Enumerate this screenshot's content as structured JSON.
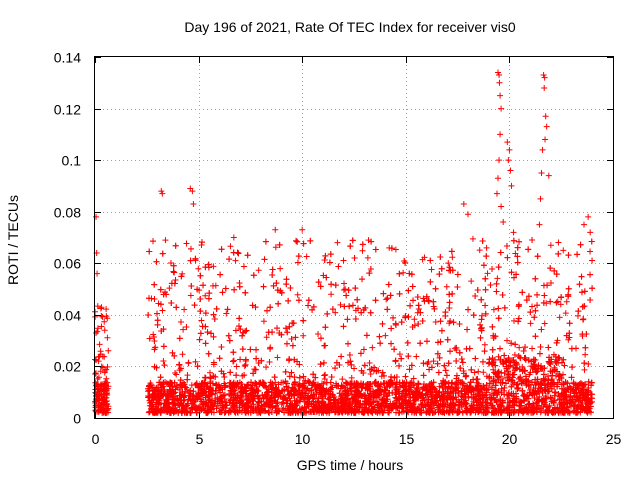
{
  "chart_data": {
    "type": "scatter",
    "title": "Day 196 of 2021, Rate Of TEC Index for receiver vis0",
    "xlabel": "GPS time / hours",
    "ylabel": "ROTI / TECUs",
    "xlim": [
      0,
      25
    ],
    "ylim": [
      0,
      0.14
    ],
    "xticks": [
      0,
      5,
      10,
      15,
      20,
      25
    ],
    "xtick_labels": [
      "0",
      "5",
      "10",
      "15",
      "20",
      "25"
    ],
    "yticks": [
      0,
      0.02,
      0.04,
      0.06,
      0.08,
      0.1,
      0.12,
      0.14
    ],
    "ytick_labels": [
      "0",
      "0.02",
      "0.04",
      "0.06",
      "0.08",
      "0.1",
      "0.12",
      "0.14"
    ],
    "grid": true,
    "marker": "+",
    "color": "#ff0000",
    "segments": [
      {
        "start": 0.0,
        "end": 0.65,
        "base": 0.012,
        "peak": 0.044
      },
      {
        "start": 2.55,
        "end": 24.0,
        "base": 0.012,
        "peak": 0.07
      }
    ],
    "points": [
      {
        "x": 0.05,
        "y": 0.078
      },
      {
        "x": 0.08,
        "y": 0.064
      },
      {
        "x": 0.1,
        "y": 0.056
      },
      {
        "x": 3.2,
        "y": 0.088
      },
      {
        "x": 3.25,
        "y": 0.087
      },
      {
        "x": 4.6,
        "y": 0.089
      },
      {
        "x": 4.7,
        "y": 0.088
      },
      {
        "x": 4.75,
        "y": 0.083
      },
      {
        "x": 3.4,
        "y": 0.069
      },
      {
        "x": 6.7,
        "y": 0.07
      },
      {
        "x": 8.7,
        "y": 0.073
      },
      {
        "x": 10.0,
        "y": 0.073
      },
      {
        "x": 11.7,
        "y": 0.068
      },
      {
        "x": 13.2,
        "y": 0.069
      },
      {
        "x": 14.2,
        "y": 0.066
      },
      {
        "x": 17.8,
        "y": 0.083
      },
      {
        "x": 18.0,
        "y": 0.079
      },
      {
        "x": 19.45,
        "y": 0.134
      },
      {
        "x": 19.5,
        "y": 0.133
      },
      {
        "x": 19.52,
        "y": 0.13
      },
      {
        "x": 19.55,
        "y": 0.125
      },
      {
        "x": 19.6,
        "y": 0.12
      },
      {
        "x": 19.55,
        "y": 0.11
      },
      {
        "x": 19.5,
        "y": 0.1
      },
      {
        "x": 19.45,
        "y": 0.093
      },
      {
        "x": 19.4,
        "y": 0.087
      },
      {
        "x": 19.6,
        "y": 0.082
      },
      {
        "x": 19.7,
        "y": 0.076
      },
      {
        "x": 19.9,
        "y": 0.107
      },
      {
        "x": 20.0,
        "y": 0.104
      },
      {
        "x": 19.95,
        "y": 0.1
      },
      {
        "x": 20.05,
        "y": 0.096
      },
      {
        "x": 20.1,
        "y": 0.09
      },
      {
        "x": 20.2,
        "y": 0.072
      },
      {
        "x": 21.65,
        "y": 0.133
      },
      {
        "x": 21.7,
        "y": 0.132
      },
      {
        "x": 21.68,
        "y": 0.128
      },
      {
        "x": 21.75,
        "y": 0.117
      },
      {
        "x": 21.8,
        "y": 0.113
      },
      {
        "x": 21.72,
        "y": 0.108
      },
      {
        "x": 21.6,
        "y": 0.104
      },
      {
        "x": 21.55,
        "y": 0.095
      },
      {
        "x": 21.5,
        "y": 0.085
      },
      {
        "x": 21.9,
        "y": 0.094
      },
      {
        "x": 21.45,
        "y": 0.075
      },
      {
        "x": 22.0,
        "y": 0.067
      },
      {
        "x": 23.6,
        "y": 0.075
      },
      {
        "x": 23.8,
        "y": 0.078
      },
      {
        "x": 23.9,
        "y": 0.072
      },
      {
        "x": 22.6,
        "y": 0.065
      },
      {
        "x": 18.9,
        "y": 0.066
      }
    ]
  }
}
